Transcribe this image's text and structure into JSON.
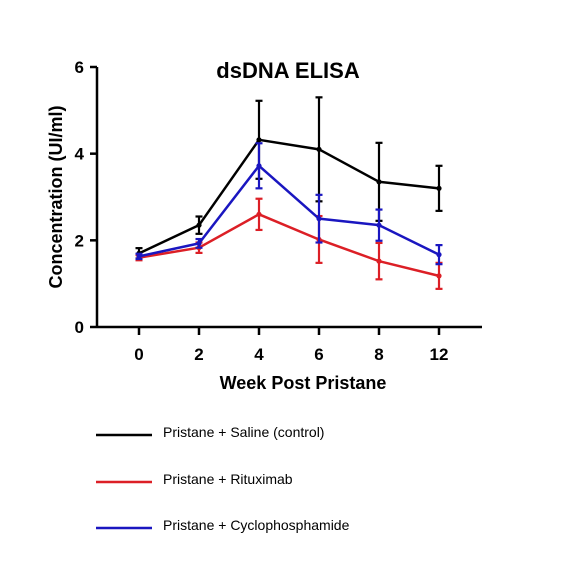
{
  "chart_data": {
    "type": "line",
    "title": "dsDNA ELISA",
    "xlabel": "Week Post Pristane",
    "ylabel": "Concentration (UI/ml)",
    "categories": [
      "0",
      "2",
      "4",
      "6",
      "8",
      "12"
    ],
    "ylim": [
      0,
      6
    ],
    "yticks": [
      "0",
      "2",
      "4",
      "6"
    ],
    "grid": false,
    "legend_position": "bottom",
    "series": [
      {
        "name": "Pristane + Saline (control)",
        "color": "#000000",
        "values": [
          1.7,
          2.35,
          4.32,
          4.1,
          3.35,
          3.2
        ],
        "error": [
          0.12,
          0.2,
          0.9,
          1.2,
          0.9,
          0.52
        ]
      },
      {
        "name": "Pristane + Rituximab",
        "color": "#dc1f26",
        "values": [
          1.6,
          1.83,
          2.6,
          2.02,
          1.52,
          1.18
        ],
        "error": [
          0.06,
          0.12,
          0.36,
          0.54,
          0.42,
          0.3
        ]
      },
      {
        "name": "Pristane + Cyclophosphamide",
        "color": "#1a16c0",
        "values": [
          1.63,
          1.93,
          3.72,
          2.5,
          2.35,
          1.67
        ],
        "error": [
          0.06,
          0.1,
          0.52,
          0.55,
          0.36,
          0.22
        ]
      }
    ]
  }
}
